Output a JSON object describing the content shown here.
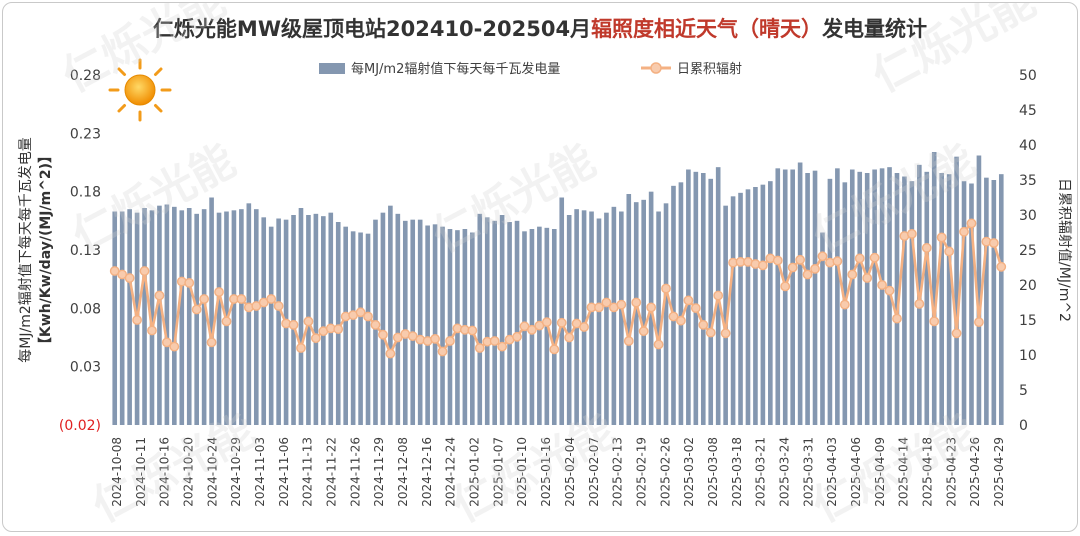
{
  "chart_data": {
    "type": "bar+line",
    "title_parts": [
      {
        "text": "仁烁光能MW级屋顶电站202410-202504月",
        "color": "#333333"
      },
      {
        "text": "辐照度相近天气（晴天）",
        "color": "#c0392b"
      },
      {
        "text": "发电量统计",
        "color": "#333333"
      }
    ],
    "ylabel_left_lines": [
      "每MJ/m2辐射值下每天每千瓦发电量",
      "【Kwh/Kw/day/(MJ/m^2)】"
    ],
    "ylabel_right": "日累积辐射值/MJ/m^2",
    "left_axis": {
      "min": -0.02,
      "max": 0.28,
      "ticks": [
        {
          "value": 0.28,
          "label": "0.28"
        },
        {
          "value": 0.23,
          "label": "0.23"
        },
        {
          "value": 0.18,
          "label": "0.18"
        },
        {
          "value": 0.13,
          "label": "0.13"
        },
        {
          "value": 0.08,
          "label": "0.08"
        },
        {
          "value": 0.03,
          "label": "0.03"
        },
        {
          "value": -0.02,
          "label": "(0.02)",
          "color": "#e02020"
        }
      ]
    },
    "right_axis": {
      "min": 0,
      "max": 50,
      "ticks": [
        {
          "value": 50,
          "label": "50"
        },
        {
          "value": 45,
          "label": "45"
        },
        {
          "value": 40,
          "label": "40"
        },
        {
          "value": 35,
          "label": "35"
        },
        {
          "value": 30,
          "label": "30"
        },
        {
          "value": 25,
          "label": "25"
        },
        {
          "value": 20,
          "label": "20"
        },
        {
          "value": 15,
          "label": "15"
        },
        {
          "value": 10,
          "label": "10"
        },
        {
          "value": 5,
          "label": "5"
        },
        {
          "value": 0,
          "label": "0"
        }
      ]
    },
    "legend": {
      "bar": "每MJ/m2辐射值下每天每千瓦发电量",
      "line": "日累积辐射"
    },
    "colors": {
      "bar": "#8497b0",
      "line": "#f4b183",
      "marker_fill": "#f8cbad",
      "title": "#333333",
      "accent": "#c0392b"
    },
    "x_labels": [
      "2024-10-08",
      "2024-10-11",
      "2024-10-16",
      "2024-10-20",
      "2024-10-24",
      "2024-10-29",
      "2024-11-03",
      "2024-11-06",
      "2024-11-13",
      "2024-11-22",
      "2024-11-26",
      "2024-11-29",
      "2024-12-08",
      "2024-12-16",
      "2024-12-24",
      "2025-01-02",
      "2025-01-07",
      "2025-01-10",
      "2025-01-16",
      "2025-02-04",
      "2025-02-07",
      "2025-02-13",
      "2025-02-19",
      "2025-02-26",
      "2025-03-02",
      "2025-03-08",
      "2025-03-18",
      "2025-03-21",
      "2025-03-24",
      "2025-03-31",
      "2025-04-03",
      "2025-04-06",
      "2025-04-09",
      "2025-04-14",
      "2025-04-18",
      "2025-04-23",
      "2025-04-26",
      "2025-04-29"
    ],
    "bar_values": [
      0.163,
      0.163,
      0.165,
      0.162,
      0.166,
      0.164,
      0.168,
      0.169,
      0.167,
      0.164,
      0.166,
      0.161,
      0.165,
      0.175,
      0.162,
      0.163,
      0.164,
      0.165,
      0.17,
      0.165,
      0.158,
      0.15,
      0.157,
      0.156,
      0.16,
      0.166,
      0.16,
      0.161,
      0.159,
      0.162,
      0.154,
      0.15,
      0.146,
      0.145,
      0.144,
      0.156,
      0.162,
      0.168,
      0.161,
      0.155,
      0.156,
      0.156,
      0.151,
      0.152,
      0.15,
      0.148,
      0.147,
      0.148,
      0.145,
      0.161,
      0.158,
      0.155,
      0.16,
      0.154,
      0.155,
      0.146,
      0.148,
      0.15,
      0.149,
      0.148,
      0.175,
      0.16,
      0.165,
      0.164,
      0.163,
      0.157,
      0.162,
      0.167,
      0.163,
      0.178,
      0.171,
      0.173,
      0.18,
      0.163,
      0.17,
      0.185,
      0.188,
      0.199,
      0.197,
      0.196,
      0.191,
      0.201,
      0.168,
      0.176,
      0.179,
      0.182,
      0.184,
      0.186,
      0.189,
      0.2,
      0.199,
      0.199,
      0.205,
      0.196,
      0.198,
      0.145,
      0.191,
      0.2,
      0.188,
      0.199,
      0.197,
      0.196,
      0.199,
      0.2,
      0.201,
      0.196,
      0.193,
      0.189,
      0.203,
      0.197,
      0.214,
      0.196,
      0.195,
      0.21,
      0.189,
      0.187,
      0.211,
      0.192,
      0.19,
      0.195
    ],
    "line_values": [
      22.0,
      21.5,
      21.0,
      15.0,
      22.0,
      13.5,
      18.5,
      11.8,
      11.2,
      20.5,
      20.3,
      16.5,
      18.0,
      11.8,
      19.0,
      14.8,
      18.0,
      18.0,
      16.8,
      17.0,
      17.5,
      18.0,
      17.0,
      14.5,
      14.3,
      11.0,
      14.8,
      12.4,
      13.4,
      13.8,
      13.7,
      15.5,
      15.7,
      16.1,
      15.5,
      14.3,
      12.9,
      10.2,
      12.5,
      13.0,
      12.7,
      12.2,
      12.0,
      12.3,
      10.5,
      12.0,
      13.8,
      13.6,
      13.5,
      11.0,
      11.9,
      12.0,
      11.2,
      12.2,
      12.6,
      14.1,
      13.6,
      14.2,
      14.7,
      10.8,
      14.6,
      12.5,
      14.5,
      14.0,
      16.8,
      16.8,
      17.5,
      16.8,
      17.2,
      12.0,
      17.5,
      13.4,
      16.8,
      11.5,
      19.5,
      15.5,
      14.9,
      17.8,
      16.7,
      14.3,
      13.2,
      18.5,
      13.1,
      23.2,
      23.3,
      23.3,
      23.0,
      22.8,
      23.8,
      23.5,
      19.8,
      22.5,
      23.6,
      21.5,
      22.3,
      24.1,
      23.2,
      23.4,
      17.2,
      21.5,
      23.8,
      21.0,
      23.9,
      20.0,
      19.2,
      15.2,
      27.0,
      27.3,
      17.3,
      25.3,
      14.8,
      26.8,
      24.8,
      13.1,
      27.6,
      28.8,
      14.7,
      26.2,
      26.0,
      22.6
    ]
  },
  "watermark": "仁烁光能",
  "sun_icon": "sun-icon"
}
